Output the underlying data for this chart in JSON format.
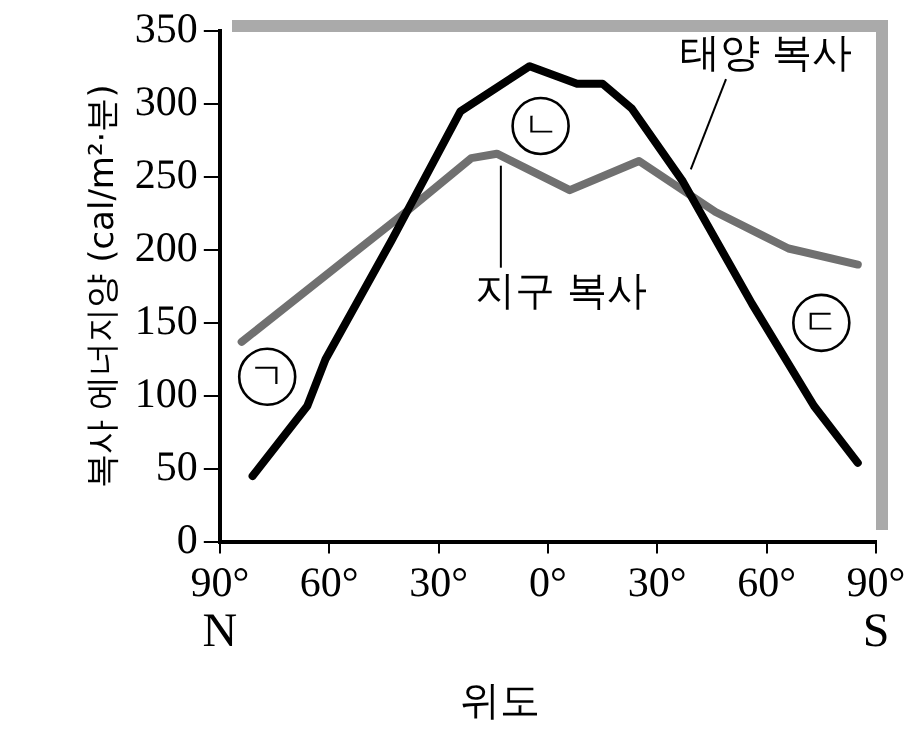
{
  "chart_data": {
    "type": "line",
    "xlabel": "위도",
    "ylabel": "복사 에너지양 (cal/m²·분)",
    "xlim": [
      -90,
      90
    ],
    "xticks": [
      {
        "value": -90,
        "label": "90°"
      },
      {
        "value": -60,
        "label": "60°"
      },
      {
        "value": -30,
        "label": "30°"
      },
      {
        "value": 0,
        "label": "0°"
      },
      {
        "value": 30,
        "label": "30°"
      },
      {
        "value": 60,
        "label": "60°"
      },
      {
        "value": 90,
        "label": "90°"
      }
    ],
    "ylim": [
      0,
      350
    ],
    "yticks": [
      0,
      50,
      100,
      150,
      200,
      250,
      300,
      350
    ],
    "grid": false,
    "legend": false,
    "marker": "none",
    "line_style": "solid",
    "series": [
      {
        "name": "태양 복사",
        "color": "#000000",
        "x": [
          -81,
          -66,
          -61,
          -43,
          -24,
          -5,
          8,
          15,
          23,
          37,
          56,
          73,
          85
        ],
        "values": [
          45,
          93,
          125,
          206,
          295,
          326,
          314,
          314,
          297,
          247,
          163,
          93,
          54
        ]
      },
      {
        "name": "지구 복사",
        "color": "#707070",
        "x": [
          -84,
          -39,
          -21,
          -14,
          6,
          25,
          46,
          66,
          85
        ],
        "values": [
          137,
          226,
          263,
          266,
          241,
          261,
          226,
          201,
          190
        ]
      }
    ],
    "annotations": [
      {
        "text": "ㄱ",
        "x": -77,
        "y": 113
      },
      {
        "text": "ㄴ",
        "x": -2,
        "y": 285
      },
      {
        "text": "ㄷ",
        "x": 75,
        "y": 150
      },
      "N",
      "S"
    ]
  }
}
